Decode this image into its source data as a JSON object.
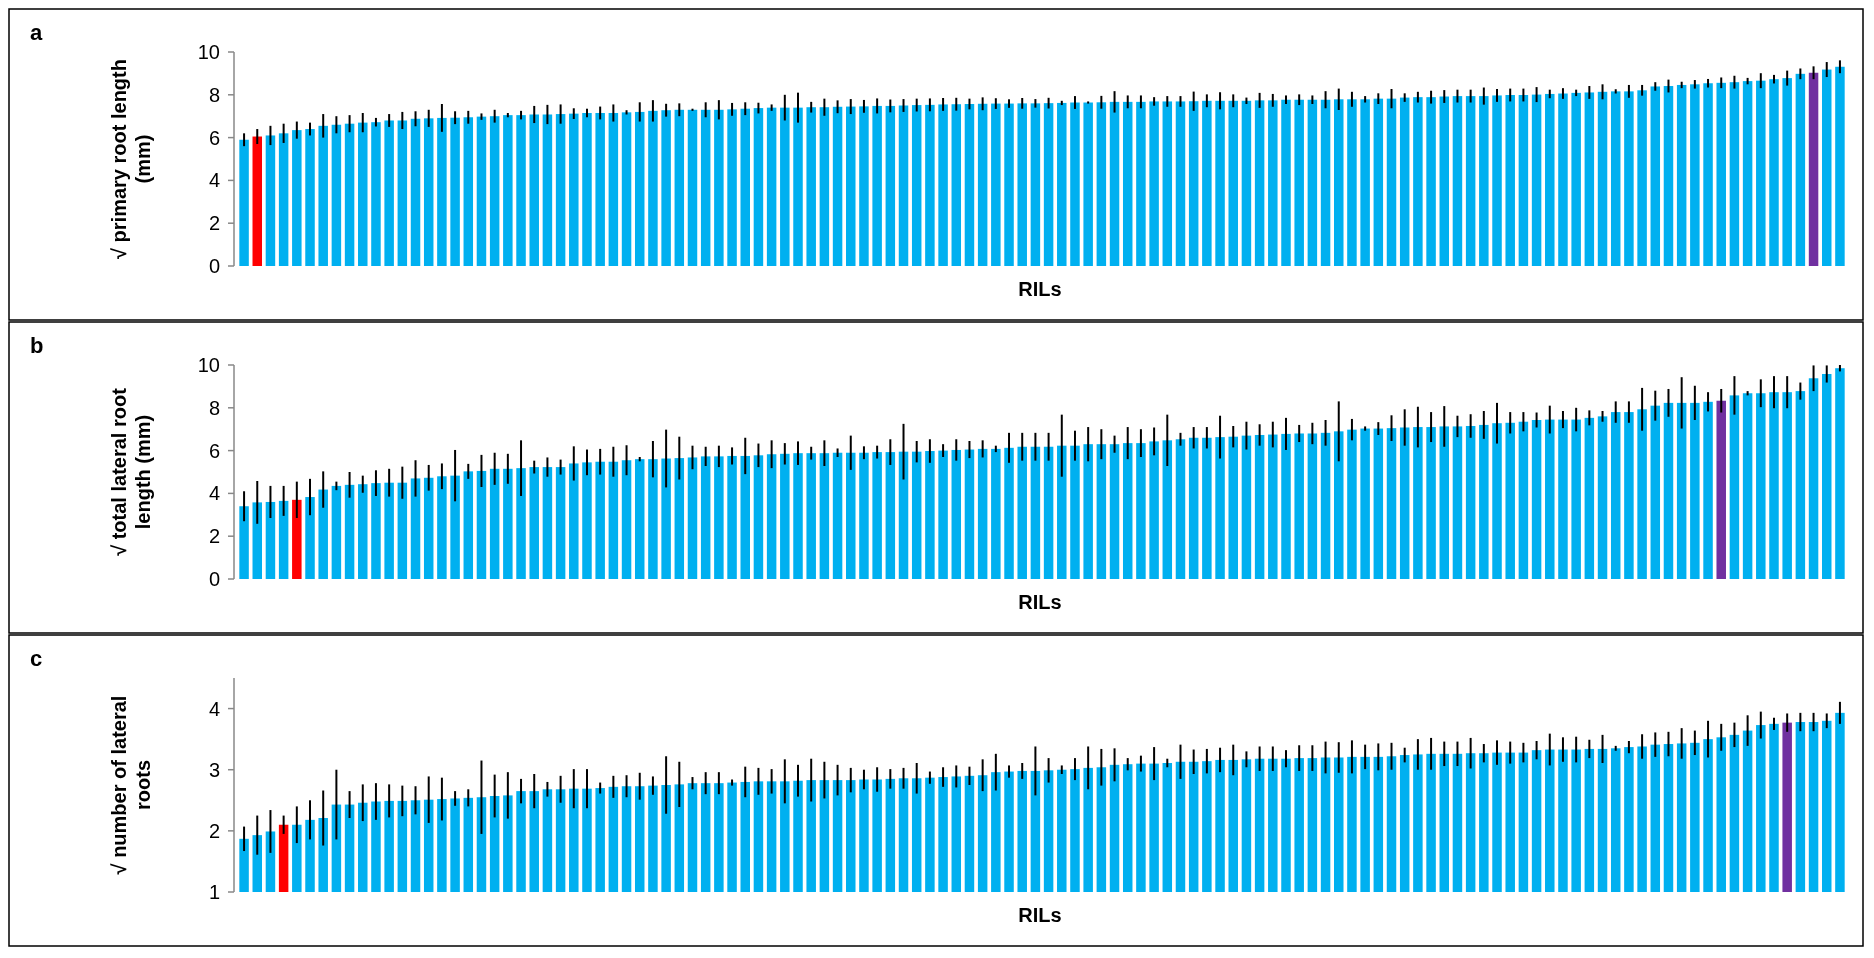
{
  "chart_data": [
    {
      "type": "bar",
      "annotations": [
        "a"
      ],
      "xlabel": "RILs",
      "ylabel": "√ primary root length (mm)",
      "ylim": [
        0,
        10
      ],
      "yticks": [
        0,
        2,
        4,
        6,
        8,
        10
      ],
      "categories": [
        null,
        null,
        null,
        null,
        null,
        null,
        null,
        null,
        null,
        null,
        null,
        null,
        null,
        null,
        null,
        null,
        null,
        null,
        null,
        null,
        null,
        null,
        null,
        null,
        null,
        null,
        null,
        null,
        null,
        null,
        null,
        null,
        null,
        null,
        null,
        null,
        null,
        null,
        null,
        null,
        null,
        null,
        null,
        null,
        null,
        null,
        null,
        null,
        null,
        null,
        null,
        null,
        null,
        null,
        null,
        null,
        null,
        null,
        null,
        null,
        null,
        null,
        null,
        null,
        null,
        null,
        null,
        null,
        null,
        null,
        null,
        null,
        null,
        null,
        null,
        null,
        null,
        null,
        null,
        null,
        null,
        null,
        null,
        null,
        null,
        null,
        null,
        null,
        null,
        null,
        null,
        null,
        null,
        null,
        null,
        null,
        null,
        null,
        null,
        null,
        null,
        null,
        null,
        null,
        null,
        null,
        null,
        null,
        null,
        null,
        null,
        null,
        null,
        null,
        null,
        null,
        null,
        null,
        null,
        null,
        null,
        null
      ],
      "values": [
        5.9,
        6.05,
        6.1,
        6.2,
        6.35,
        6.4,
        6.55,
        6.6,
        6.65,
        6.7,
        6.72,
        6.8,
        6.8,
        6.88,
        6.9,
        6.92,
        6.93,
        6.95,
        6.98,
        7.0,
        7.05,
        7.05,
        7.08,
        7.08,
        7.1,
        7.12,
        7.15,
        7.15,
        7.15,
        7.18,
        7.2,
        7.25,
        7.28,
        7.3,
        7.3,
        7.3,
        7.3,
        7.32,
        7.35,
        7.38,
        7.4,
        7.4,
        7.4,
        7.42,
        7.42,
        7.44,
        7.45,
        7.46,
        7.48,
        7.48,
        7.5,
        7.52,
        7.53,
        7.55,
        7.56,
        7.57,
        7.58,
        7.59,
        7.59,
        7.6,
        7.6,
        7.61,
        7.62,
        7.64,
        7.64,
        7.65,
        7.67,
        7.67,
        7.67,
        7.69,
        7.69,
        7.69,
        7.7,
        7.72,
        7.72,
        7.72,
        7.72,
        7.74,
        7.74,
        7.77,
        7.77,
        7.77,
        7.77,
        7.79,
        7.79,
        7.79,
        7.82,
        7.82,
        7.87,
        7.89,
        7.89,
        7.92,
        7.94,
        7.94,
        7.94,
        7.97,
        7.99,
        7.99,
        8.01,
        8.04,
        8.06,
        8.09,
        8.11,
        8.14,
        8.16,
        8.16,
        8.21,
        8.39,
        8.41,
        8.46,
        8.49,
        8.54,
        8.56,
        8.59,
        8.64,
        8.66,
        8.73,
        8.78,
        8.98,
        9.03,
        9.18,
        9.31
      ],
      "errors": [
        0.3,
        0.35,
        0.45,
        0.45,
        0.4,
        0.3,
        0.55,
        0.4,
        0.4,
        0.45,
        0.2,
        0.3,
        0.4,
        0.35,
        0.4,
        0.65,
        0.3,
        0.3,
        0.15,
        0.3,
        0.1,
        0.2,
        0.4,
        0.45,
        0.45,
        0.25,
        0.2,
        0.3,
        0.4,
        0.1,
        0.45,
        0.5,
        0.3,
        0.3,
        0.05,
        0.35,
        0.45,
        0.3,
        0.3,
        0.25,
        0.15,
        0.6,
        0.7,
        0.25,
        0.4,
        0.3,
        0.35,
        0.3,
        0.35,
        0.3,
        0.3,
        0.3,
        0.3,
        0.3,
        0.3,
        0.25,
        0.3,
        0.25,
        0.2,
        0.25,
        0.2,
        0.25,
        0.1,
        0.3,
        0.05,
        0.3,
        0.5,
        0.3,
        0.3,
        0.2,
        0.25,
        0.25,
        0.45,
        0.3,
        0.4,
        0.3,
        0.15,
        0.35,
        0.3,
        0.2,
        0.25,
        0.2,
        0.4,
        0.5,
        0.35,
        0.15,
        0.25,
        0.45,
        0.2,
        0.25,
        0.3,
        0.3,
        0.3,
        0.3,
        0.4,
        0.3,
        0.3,
        0.3,
        0.35,
        0.2,
        0.25,
        0.15,
        0.3,
        0.35,
        0.1,
        0.3,
        0.25,
        0.2,
        0.3,
        0.15,
        0.2,
        0.2,
        0.25,
        0.3,
        0.15,
        0.35,
        0.2,
        0.35,
        0.25,
        0.3,
        0.35,
        0.3
      ],
      "colors": [
        "#00b0f0",
        "#ff0000",
        "#00b0f0",
        "#00b0f0",
        "#00b0f0",
        "#00b0f0",
        "#00b0f0",
        "#00b0f0",
        "#00b0f0",
        "#00b0f0",
        "#00b0f0",
        "#00b0f0",
        "#00b0f0",
        "#00b0f0",
        "#00b0f0",
        "#00b0f0",
        "#00b0f0",
        "#00b0f0",
        "#00b0f0",
        "#00b0f0",
        "#00b0f0",
        "#00b0f0",
        "#00b0f0",
        "#00b0f0",
        "#00b0f0",
        "#00b0f0",
        "#00b0f0",
        "#00b0f0",
        "#00b0f0",
        "#00b0f0",
        "#00b0f0",
        "#00b0f0",
        "#00b0f0",
        "#00b0f0",
        "#00b0f0",
        "#00b0f0",
        "#00b0f0",
        "#00b0f0",
        "#00b0f0",
        "#00b0f0",
        "#00b0f0",
        "#00b0f0",
        "#00b0f0",
        "#00b0f0",
        "#00b0f0",
        "#00b0f0",
        "#00b0f0",
        "#00b0f0",
        "#00b0f0",
        "#00b0f0",
        "#00b0f0",
        "#00b0f0",
        "#00b0f0",
        "#00b0f0",
        "#00b0f0",
        "#00b0f0",
        "#00b0f0",
        "#00b0f0",
        "#00b0f0",
        "#00b0f0",
        "#00b0f0",
        "#00b0f0",
        "#00b0f0",
        "#00b0f0",
        "#00b0f0",
        "#00b0f0",
        "#00b0f0",
        "#00b0f0",
        "#00b0f0",
        "#00b0f0",
        "#00b0f0",
        "#00b0f0",
        "#00b0f0",
        "#00b0f0",
        "#00b0f0",
        "#00b0f0",
        "#00b0f0",
        "#00b0f0",
        "#00b0f0",
        "#00b0f0",
        "#00b0f0",
        "#00b0f0",
        "#00b0f0",
        "#00b0f0",
        "#00b0f0",
        "#00b0f0",
        "#00b0f0",
        "#00b0f0",
        "#00b0f0",
        "#00b0f0",
        "#00b0f0",
        "#00b0f0",
        "#00b0f0",
        "#00b0f0",
        "#00b0f0",
        "#00b0f0",
        "#00b0f0",
        "#00b0f0",
        "#00b0f0",
        "#00b0f0",
        "#00b0f0",
        "#00b0f0",
        "#00b0f0",
        "#00b0f0",
        "#00b0f0",
        "#00b0f0",
        "#00b0f0",
        "#00b0f0",
        "#00b0f0",
        "#00b0f0",
        "#00b0f0",
        "#00b0f0",
        "#00b0f0",
        "#00b0f0",
        "#00b0f0",
        "#00b0f0",
        "#00b0f0",
        "#00b0f0",
        "#00b0f0",
        "#7030a0",
        "#00b0f0",
        "#00b0f0"
      ]
    },
    {
      "type": "bar",
      "annotations": [
        "b"
      ],
      "xlabel": "RILs",
      "ylabel": "√ total lateral root length (mm)",
      "ylim": [
        0,
        10
      ],
      "yticks": [
        0,
        2,
        4,
        6,
        8,
        10
      ],
      "categories": [
        null,
        null,
        null,
        null,
        null,
        null,
        null,
        null,
        null,
        null,
        null,
        null,
        null,
        null,
        null,
        null,
        null,
        null,
        null,
        null,
        null,
        null,
        null,
        null,
        null,
        null,
        null,
        null,
        null,
        null,
        null,
        null,
        null,
        null,
        null,
        null,
        null,
        null,
        null,
        null,
        null,
        null,
        null,
        null,
        null,
        null,
        null,
        null,
        null,
        null,
        null,
        null,
        null,
        null,
        null,
        null,
        null,
        null,
        null,
        null,
        null,
        null,
        null,
        null,
        null,
        null,
        null,
        null,
        null,
        null,
        null,
        null,
        null,
        null,
        null,
        null,
        null,
        null,
        null,
        null,
        null,
        null,
        null,
        null,
        null,
        null,
        null,
        null,
        null,
        null,
        null,
        null,
        null,
        null,
        null,
        null,
        null,
        null,
        null,
        null,
        null,
        null,
        null,
        null,
        null,
        null,
        null,
        null,
        null,
        null,
        null,
        null,
        null,
        null,
        null,
        null,
        null,
        null,
        null,
        null,
        null,
        null
      ],
      "values": [
        3.4,
        3.58,
        3.6,
        3.65,
        3.7,
        3.83,
        4.18,
        4.35,
        4.4,
        4.43,
        4.48,
        4.5,
        4.5,
        4.7,
        4.73,
        4.8,
        4.83,
        5.03,
        5.05,
        5.15,
        5.15,
        5.18,
        5.23,
        5.23,
        5.23,
        5.4,
        5.45,
        5.48,
        5.48,
        5.55,
        5.6,
        5.6,
        5.63,
        5.65,
        5.68,
        5.73,
        5.73,
        5.75,
        5.75,
        5.78,
        5.83,
        5.85,
        5.88,
        5.88,
        5.88,
        5.9,
        5.9,
        5.9,
        5.93,
        5.93,
        5.95,
        5.95,
        5.98,
        6.0,
        6.03,
        6.05,
        6.08,
        6.08,
        6.13,
        6.18,
        6.18,
        6.18,
        6.23,
        6.23,
        6.3,
        6.3,
        6.3,
        6.35,
        6.35,
        6.43,
        6.48,
        6.53,
        6.6,
        6.6,
        6.63,
        6.65,
        6.7,
        6.73,
        6.75,
        6.78,
        6.8,
        6.8,
        6.83,
        6.9,
        6.98,
        7.03,
        7.03,
        7.05,
        7.08,
        7.1,
        7.1,
        7.13,
        7.13,
        7.15,
        7.2,
        7.28,
        7.3,
        7.35,
        7.43,
        7.45,
        7.45,
        7.45,
        7.53,
        7.6,
        7.8,
        7.8,
        7.93,
        8.1,
        8.23,
        8.23,
        8.23,
        8.28,
        8.33,
        8.58,
        8.68,
        8.68,
        8.73,
        8.73,
        8.78,
        9.38,
        9.58,
        9.85
      ],
      "errors": [
        0.7,
        1.0,
        0.75,
        0.7,
        0.85,
        0.85,
        0.85,
        0.2,
        0.6,
        0.4,
        0.6,
        0.65,
        0.75,
        0.85,
        0.6,
        0.6,
        1.2,
        0.35,
        0.75,
        0.75,
        0.7,
        1.3,
        0.3,
        0.45,
        0.35,
        0.8,
        0.6,
        0.6,
        0.7,
        0.7,
        0.1,
        0.85,
        1.35,
        1.0,
        0.55,
        0.45,
        0.5,
        0.4,
        0.85,
        0.55,
        0.65,
        0.5,
        0.55,
        0.3,
        0.6,
        0.2,
        0.8,
        0.3,
        0.3,
        0.6,
        1.3,
        0.5,
        0.55,
        0.3,
        0.5,
        0.4,
        0.4,
        0.15,
        0.7,
        0.65,
        0.65,
        0.65,
        1.45,
        0.7,
        0.8,
        0.7,
        0.4,
        0.75,
        0.65,
        0.65,
        1.2,
        0.3,
        0.5,
        0.5,
        1.0,
        0.5,
        0.65,
        0.5,
        0.6,
        0.75,
        0.4,
        0.5,
        0.6,
        1.4,
        0.5,
        0.1,
        0.3,
        0.6,
        0.85,
        0.95,
        0.7,
        0.95,
        0.5,
        0.55,
        0.65,
        0.95,
        0.5,
        0.45,
        0.35,
        0.65,
        0.4,
        0.55,
        0.35,
        0.25,
        0.5,
        0.5,
        1.0,
        0.7,
        0.65,
        1.2,
        0.8,
        0.45,
        0.55,
        0.9,
        0.1,
        0.65,
        0.75,
        0.75,
        0.4,
        0.6,
        0.4,
        0.15
      ],
      "colors": [
        "#00b0f0",
        "#00b0f0",
        "#00b0f0",
        "#00b0f0",
        "#ff0000",
        "#00b0f0",
        "#00b0f0",
        "#00b0f0",
        "#00b0f0",
        "#00b0f0",
        "#00b0f0",
        "#00b0f0",
        "#00b0f0",
        "#00b0f0",
        "#00b0f0",
        "#00b0f0",
        "#00b0f0",
        "#00b0f0",
        "#00b0f0",
        "#00b0f0",
        "#00b0f0",
        "#00b0f0",
        "#00b0f0",
        "#00b0f0",
        "#00b0f0",
        "#00b0f0",
        "#00b0f0",
        "#00b0f0",
        "#00b0f0",
        "#00b0f0",
        "#00b0f0",
        "#00b0f0",
        "#00b0f0",
        "#00b0f0",
        "#00b0f0",
        "#00b0f0",
        "#00b0f0",
        "#00b0f0",
        "#00b0f0",
        "#00b0f0",
        "#00b0f0",
        "#00b0f0",
        "#00b0f0",
        "#00b0f0",
        "#00b0f0",
        "#00b0f0",
        "#00b0f0",
        "#00b0f0",
        "#00b0f0",
        "#00b0f0",
        "#00b0f0",
        "#00b0f0",
        "#00b0f0",
        "#00b0f0",
        "#00b0f0",
        "#00b0f0",
        "#00b0f0",
        "#00b0f0",
        "#00b0f0",
        "#00b0f0",
        "#00b0f0",
        "#00b0f0",
        "#00b0f0",
        "#00b0f0",
        "#00b0f0",
        "#00b0f0",
        "#00b0f0",
        "#00b0f0",
        "#00b0f0",
        "#00b0f0",
        "#00b0f0",
        "#00b0f0",
        "#00b0f0",
        "#00b0f0",
        "#00b0f0",
        "#00b0f0",
        "#00b0f0",
        "#00b0f0",
        "#00b0f0",
        "#00b0f0",
        "#00b0f0",
        "#00b0f0",
        "#00b0f0",
        "#00b0f0",
        "#00b0f0",
        "#00b0f0",
        "#00b0f0",
        "#00b0f0",
        "#00b0f0",
        "#00b0f0",
        "#00b0f0",
        "#00b0f0",
        "#00b0f0",
        "#00b0f0",
        "#00b0f0",
        "#00b0f0",
        "#00b0f0",
        "#00b0f0",
        "#00b0f0",
        "#00b0f0",
        "#00b0f0",
        "#00b0f0",
        "#00b0f0",
        "#00b0f0",
        "#00b0f0",
        "#00b0f0",
        "#00b0f0",
        "#00b0f0",
        "#00b0f0",
        "#00b0f0",
        "#00b0f0",
        "#00b0f0",
        "#7030a0",
        "#00b0f0",
        "#00b0f0",
        "#00b0f0",
        "#00b0f0",
        "#00b0f0",
        "#00b0f0",
        "#00b0f0",
        "#00b0f0",
        "#00b0f0"
      ]
    },
    {
      "type": "bar",
      "annotations": [
        "c"
      ],
      "xlabel": "RILs",
      "ylabel": "√ number of lateral roots",
      "ylim": [
        1,
        4.5
      ],
      "yticks": [
        1,
        2,
        3,
        4
      ],
      "categories": [
        null,
        null,
        null,
        null,
        null,
        null,
        null,
        null,
        null,
        null,
        null,
        null,
        null,
        null,
        null,
        null,
        null,
        null,
        null,
        null,
        null,
        null,
        null,
        null,
        null,
        null,
        null,
        null,
        null,
        null,
        null,
        null,
        null,
        null,
        null,
        null,
        null,
        null,
        null,
        null,
        null,
        null,
        null,
        null,
        null,
        null,
        null,
        null,
        null,
        null,
        null,
        null,
        null,
        null,
        null,
        null,
        null,
        null,
        null,
        null,
        null,
        null,
        null,
        null,
        null,
        null,
        null,
        null,
        null,
        null,
        null,
        null,
        null,
        null,
        null,
        null,
        null,
        null,
        null,
        null,
        null,
        null,
        null,
        null,
        null,
        null,
        null,
        null,
        null,
        null,
        null,
        null,
        null,
        null,
        null,
        null,
        null,
        null,
        null,
        null,
        null,
        null,
        null,
        null,
        null,
        null,
        null,
        null,
        null,
        null,
        null,
        null,
        null,
        null,
        null,
        null,
        null,
        null,
        null,
        null,
        null,
        null
      ],
      "values": [
        1.87,
        1.93,
        1.99,
        2.1,
        2.1,
        2.18,
        2.21,
        2.43,
        2.43,
        2.46,
        2.48,
        2.49,
        2.49,
        2.5,
        2.51,
        2.52,
        2.53,
        2.54,
        2.55,
        2.57,
        2.58,
        2.65,
        2.65,
        2.68,
        2.68,
        2.69,
        2.69,
        2.7,
        2.72,
        2.73,
        2.73,
        2.74,
        2.75,
        2.76,
        2.78,
        2.78,
        2.78,
        2.79,
        2.8,
        2.81,
        2.81,
        2.81,
        2.82,
        2.83,
        2.83,
        2.83,
        2.83,
        2.84,
        2.84,
        2.85,
        2.86,
        2.86,
        2.87,
        2.88,
        2.89,
        2.9,
        2.91,
        2.96,
        2.97,
        2.98,
        2.98,
        2.99,
        3.0,
        3.01,
        3.03,
        3.04,
        3.08,
        3.09,
        3.1,
        3.1,
        3.11,
        3.13,
        3.13,
        3.14,
        3.16,
        3.16,
        3.17,
        3.18,
        3.18,
        3.18,
        3.19,
        3.19,
        3.2,
        3.2,
        3.21,
        3.21,
        3.21,
        3.22,
        3.24,
        3.25,
        3.26,
        3.26,
        3.26,
        3.27,
        3.27,
        3.28,
        3.28,
        3.28,
        3.32,
        3.33,
        3.33,
        3.33,
        3.34,
        3.34,
        3.35,
        3.37,
        3.38,
        3.41,
        3.42,
        3.43,
        3.44,
        3.5,
        3.53,
        3.57,
        3.64,
        3.73,
        3.75,
        3.77,
        3.78,
        3.78,
        3.8,
        3.93
      ],
      "errors": [
        0.2,
        0.32,
        0.35,
        0.15,
        0.3,
        0.32,
        0.45,
        0.57,
        0.22,
        0.3,
        0.3,
        0.27,
        0.25,
        0.23,
        0.38,
        0.35,
        0.12,
        0.14,
        0.6,
        0.35,
        0.38,
        0.2,
        0.28,
        0.12,
        0.22,
        0.32,
        0.32,
        0.09,
        0.18,
        0.18,
        0.22,
        0.15,
        0.47,
        0.37,
        0.1,
        0.18,
        0.18,
        0.05,
        0.25,
        0.22,
        0.2,
        0.36,
        0.26,
        0.35,
        0.3,
        0.25,
        0.2,
        0.16,
        0.2,
        0.16,
        0.17,
        0.25,
        0.1,
        0.16,
        0.18,
        0.15,
        0.26,
        0.3,
        0.1,
        0.13,
        0.4,
        0.2,
        0.07,
        0.18,
        0.35,
        0.3,
        0.27,
        0.1,
        0.13,
        0.27,
        0.07,
        0.28,
        0.2,
        0.2,
        0.2,
        0.25,
        0.13,
        0.2,
        0.2,
        0.14,
        0.21,
        0.21,
        0.26,
        0.25,
        0.27,
        0.2,
        0.22,
        0.22,
        0.12,
        0.25,
        0.26,
        0.2,
        0.2,
        0.25,
        0.15,
        0.2,
        0.18,
        0.16,
        0.15,
        0.26,
        0.2,
        0.21,
        0.15,
        0.23,
        0.04,
        0.1,
        0.2,
        0.2,
        0.2,
        0.25,
        0.2,
        0.3,
        0.22,
        0.2,
        0.25,
        0.22,
        0.1,
        0.15,
        0.15,
        0.15,
        0.12,
        0.18
      ],
      "colors": [
        "#00b0f0",
        "#00b0f0",
        "#00b0f0",
        "#ff0000",
        "#00b0f0",
        "#00b0f0",
        "#00b0f0",
        "#00b0f0",
        "#00b0f0",
        "#00b0f0",
        "#00b0f0",
        "#00b0f0",
        "#00b0f0",
        "#00b0f0",
        "#00b0f0",
        "#00b0f0",
        "#00b0f0",
        "#00b0f0",
        "#00b0f0",
        "#00b0f0",
        "#00b0f0",
        "#00b0f0",
        "#00b0f0",
        "#00b0f0",
        "#00b0f0",
        "#00b0f0",
        "#00b0f0",
        "#00b0f0",
        "#00b0f0",
        "#00b0f0",
        "#00b0f0",
        "#00b0f0",
        "#00b0f0",
        "#00b0f0",
        "#00b0f0",
        "#00b0f0",
        "#00b0f0",
        "#00b0f0",
        "#00b0f0",
        "#00b0f0",
        "#00b0f0",
        "#00b0f0",
        "#00b0f0",
        "#00b0f0",
        "#00b0f0",
        "#00b0f0",
        "#00b0f0",
        "#00b0f0",
        "#00b0f0",
        "#00b0f0",
        "#00b0f0",
        "#00b0f0",
        "#00b0f0",
        "#00b0f0",
        "#00b0f0",
        "#00b0f0",
        "#00b0f0",
        "#00b0f0",
        "#00b0f0",
        "#00b0f0",
        "#00b0f0",
        "#00b0f0",
        "#00b0f0",
        "#00b0f0",
        "#00b0f0",
        "#00b0f0",
        "#00b0f0",
        "#00b0f0",
        "#00b0f0",
        "#00b0f0",
        "#00b0f0",
        "#00b0f0",
        "#00b0f0",
        "#00b0f0",
        "#00b0f0",
        "#00b0f0",
        "#00b0f0",
        "#00b0f0",
        "#00b0f0",
        "#00b0f0",
        "#00b0f0",
        "#00b0f0",
        "#00b0f0",
        "#00b0f0",
        "#00b0f0",
        "#00b0f0",
        "#00b0f0",
        "#00b0f0",
        "#00b0f0",
        "#00b0f0",
        "#00b0f0",
        "#00b0f0",
        "#00b0f0",
        "#00b0f0",
        "#00b0f0",
        "#00b0f0",
        "#00b0f0",
        "#00b0f0",
        "#00b0f0",
        "#00b0f0",
        "#00b0f0",
        "#00b0f0",
        "#00b0f0",
        "#00b0f0",
        "#00b0f0",
        "#00b0f0",
        "#00b0f0",
        "#00b0f0",
        "#00b0f0",
        "#00b0f0",
        "#00b0f0",
        "#00b0f0",
        "#00b0f0",
        "#00b0f0",
        "#00b0f0",
        "#00b0f0",
        "#00b0f0",
        "#7030a0",
        "#00b0f0",
        "#00b0f0",
        "#00b0f0",
        "#00b0f0"
      ]
    }
  ]
}
